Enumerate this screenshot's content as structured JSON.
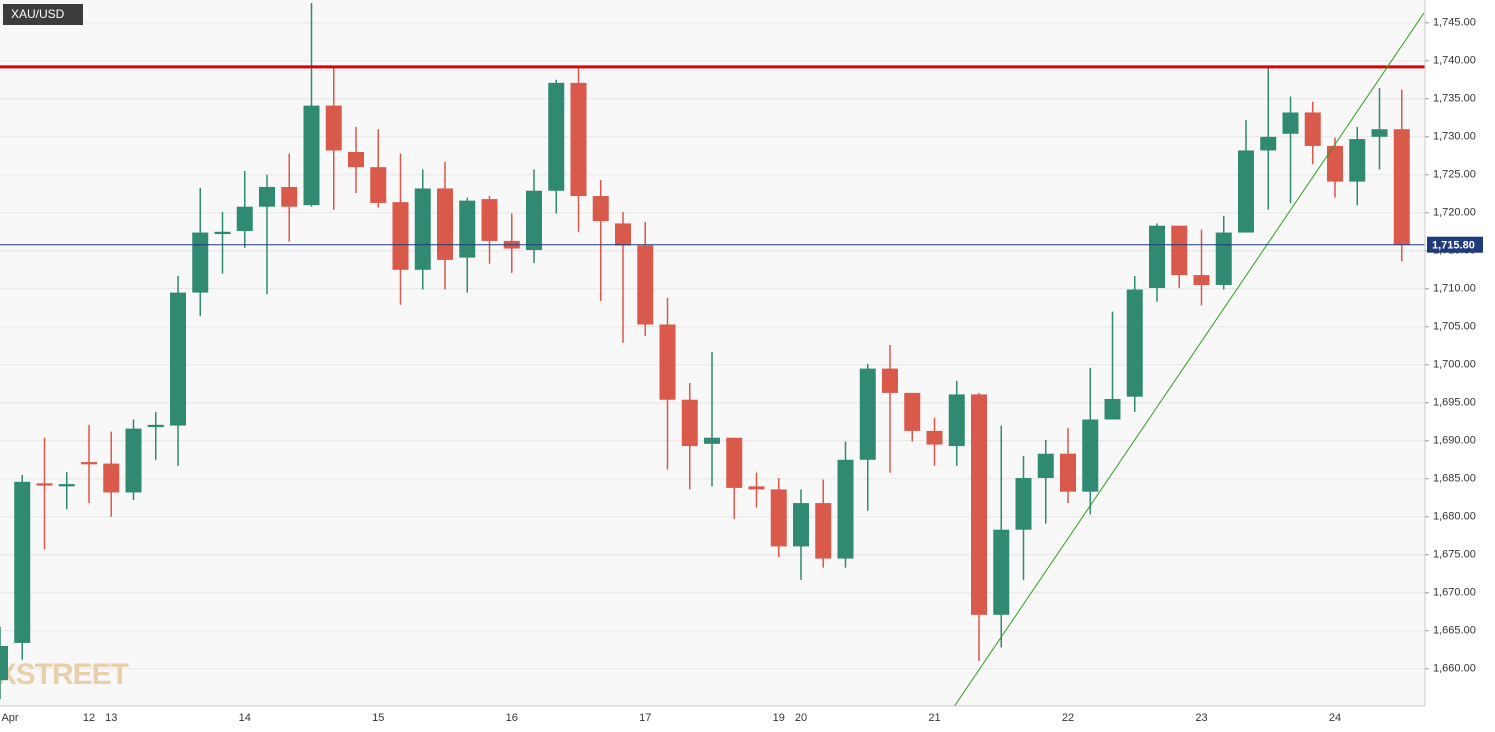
{
  "chart_data": {
    "type": "candlestick",
    "title": "XAU/USD",
    "watermark": "FXSTREET",
    "categories": [
      "Apr",
      null,
      null,
      null,
      "12",
      "13",
      null,
      null,
      null,
      null,
      null,
      "14",
      null,
      null,
      null,
      null,
      null,
      "15",
      null,
      null,
      null,
      null,
      null,
      "16",
      null,
      null,
      null,
      null,
      null,
      "17",
      null,
      null,
      null,
      null,
      null,
      "19",
      "20",
      null,
      null,
      null,
      null,
      null,
      "21",
      null,
      null,
      null,
      null,
      null,
      "22",
      null,
      null,
      null,
      null,
      null,
      "23",
      null,
      null,
      null,
      null,
      null,
      "24",
      null,
      null,
      null
    ],
    "open": [
      1658.5,
      1663.4,
      1684.4,
      1684.0,
      1687.2,
      1687.0,
      1683.2,
      1691.8,
      1692.0,
      1709.5,
      1717.2,
      1717.6,
      1720.8,
      1723.4,
      1721.0,
      1734.1,
      1728.0,
      1726.0,
      1721.4,
      1712.5,
      1723.2,
      1714.1,
      1721.8,
      1716.3,
      1715.1,
      1722.9,
      1737.1,
      1722.2,
      1718.6,
      1715.7,
      1705.3,
      1695.4,
      1689.6,
      1690.4,
      1684.0,
      1683.6,
      1676.1,
      1681.8,
      1674.5,
      1687.5,
      1699.5,
      1696.3,
      1691.3,
      1689.3,
      1696.1,
      1667.1,
      1678.3,
      1685.1,
      1688.3,
      1683.3,
      1692.8,
      1695.8,
      1710.1,
      1718.3,
      1711.8,
      1710.5,
      1717.4,
      1728.2,
      1730.4,
      1733.2,
      1728.8,
      1724.1,
      1730.0,
      1731.0
    ],
    "high": [
      1665.5,
      1685.5,
      1690.4,
      1685.9,
      1692.1,
      1691.2,
      1692.8,
      1693.8,
      1711.7,
      1723.3,
      1720.1,
      1725.5,
      1725.0,
      1727.8,
      1747.6,
      1739.3,
      1731.3,
      1731.0,
      1727.8,
      1725.7,
      1726.7,
      1722.0,
      1722.2,
      1719.9,
      1725.7,
      1737.5,
      1739.1,
      1724.3,
      1720.1,
      1718.8,
      1708.8,
      1697.6,
      1701.7,
      1690.4,
      1685.8,
      1685.1,
      1683.6,
      1684.9,
      1689.9,
      1700.1,
      1702.6,
      1696.3,
      1693.0,
      1697.9,
      1696.3,
      1692.0,
      1688.0,
      1690.1,
      1691.7,
      1699.6,
      1707.0,
      1711.7,
      1718.6,
      1718.3,
      1717.8,
      1719.6,
      1732.2,
      1739.1,
      1735.3,
      1734.6,
      1729.9,
      1731.3,
      1736.4,
      1736.2
    ],
    "low": [
      1656.0,
      1661.2,
      1675.7,
      1681.0,
      1681.8,
      1680.0,
      1682.2,
      1687.5,
      1686.7,
      1706.4,
      1712.0,
      1715.4,
      1709.3,
      1716.2,
      1720.8,
      1720.4,
      1722.6,
      1720.7,
      1707.9,
      1709.9,
      1709.9,
      1709.5,
      1713.3,
      1712.1,
      1713.4,
      1719.9,
      1717.5,
      1708.4,
      1702.9,
      1703.8,
      1686.2,
      1683.6,
      1684.0,
      1679.7,
      1681.2,
      1674.7,
      1671.7,
      1673.3,
      1673.3,
      1680.8,
      1685.8,
      1689.9,
      1686.7,
      1686.7,
      1661.0,
      1662.8,
      1671.7,
      1679.1,
      1681.8,
      1680.3,
      1692.8,
      1693.8,
      1708.3,
      1710.1,
      1707.8,
      1709.9,
      1717.4,
      1720.4,
      1721.3,
      1726.4,
      1722.0,
      1721.0,
      1725.7,
      1713.6
    ],
    "close": [
      1663.0,
      1684.6,
      1684.1,
      1684.3,
      1686.9,
      1683.2,
      1691.6,
      1692.1,
      1709.5,
      1717.4,
      1717.5,
      1720.8,
      1723.4,
      1720.8,
      1734.1,
      1728.2,
      1726.0,
      1721.3,
      1712.5,
      1723.2,
      1713.8,
      1721.6,
      1716.3,
      1715.3,
      1722.9,
      1737.1,
      1722.2,
      1718.9,
      1715.7,
      1705.3,
      1695.4,
      1689.3,
      1690.4,
      1683.8,
      1683.6,
      1676.1,
      1681.8,
      1674.5,
      1687.5,
      1699.5,
      1696.3,
      1691.3,
      1689.5,
      1696.1,
      1667.1,
      1678.3,
      1685.1,
      1688.3,
      1683.3,
      1692.8,
      1695.5,
      1709.9,
      1718.3,
      1711.8,
      1710.5,
      1717.4,
      1728.2,
      1730.0,
      1733.2,
      1728.8,
      1724.1,
      1729.7,
      1731.0,
      1715.8
    ],
    "up_color": "#2f8a71",
    "down_color": "#d9594a",
    "ylim": [
      1655.1,
      1748.0
    ],
    "yticks": [
      {
        "value": 1660,
        "label": "1,660.00"
      },
      {
        "value": 1665,
        "label": "1,665.00"
      },
      {
        "value": 1670,
        "label": "1,670.00"
      },
      {
        "value": 1675,
        "label": "1,675.00"
      },
      {
        "value": 1680,
        "label": "1,680.00"
      },
      {
        "value": 1685,
        "label": "1,685.00"
      },
      {
        "value": 1690,
        "label": "1,690.00"
      },
      {
        "value": 1695,
        "label": "1,695.00"
      },
      {
        "value": 1700,
        "label": "1,700.00"
      },
      {
        "value": 1705,
        "label": "1,705.00"
      },
      {
        "value": 1710,
        "label": "1,710.00"
      },
      {
        "value": 1715,
        "label": "1,715.00"
      },
      {
        "value": 1720,
        "label": "1,720.00"
      },
      {
        "value": 1725,
        "label": "1,725.00"
      },
      {
        "value": 1730,
        "label": "1,730.00"
      },
      {
        "value": 1735,
        "label": "1,735.00"
      },
      {
        "value": 1740,
        "label": "1,740.00"
      },
      {
        "value": 1745,
        "label": "1,745.00"
      }
    ],
    "grid": true,
    "last_price": {
      "value": 1715.8,
      "label": "1,715.80",
      "color": "#1f3a7a"
    },
    "resistance": {
      "value": 1739.2,
      "color": "#e00000"
    },
    "trendline": {
      "color": "#2e9e1e",
      "start": [
        42.9,
        1655.1
      ],
      "end": [
        64,
        1746.3
      ]
    }
  }
}
